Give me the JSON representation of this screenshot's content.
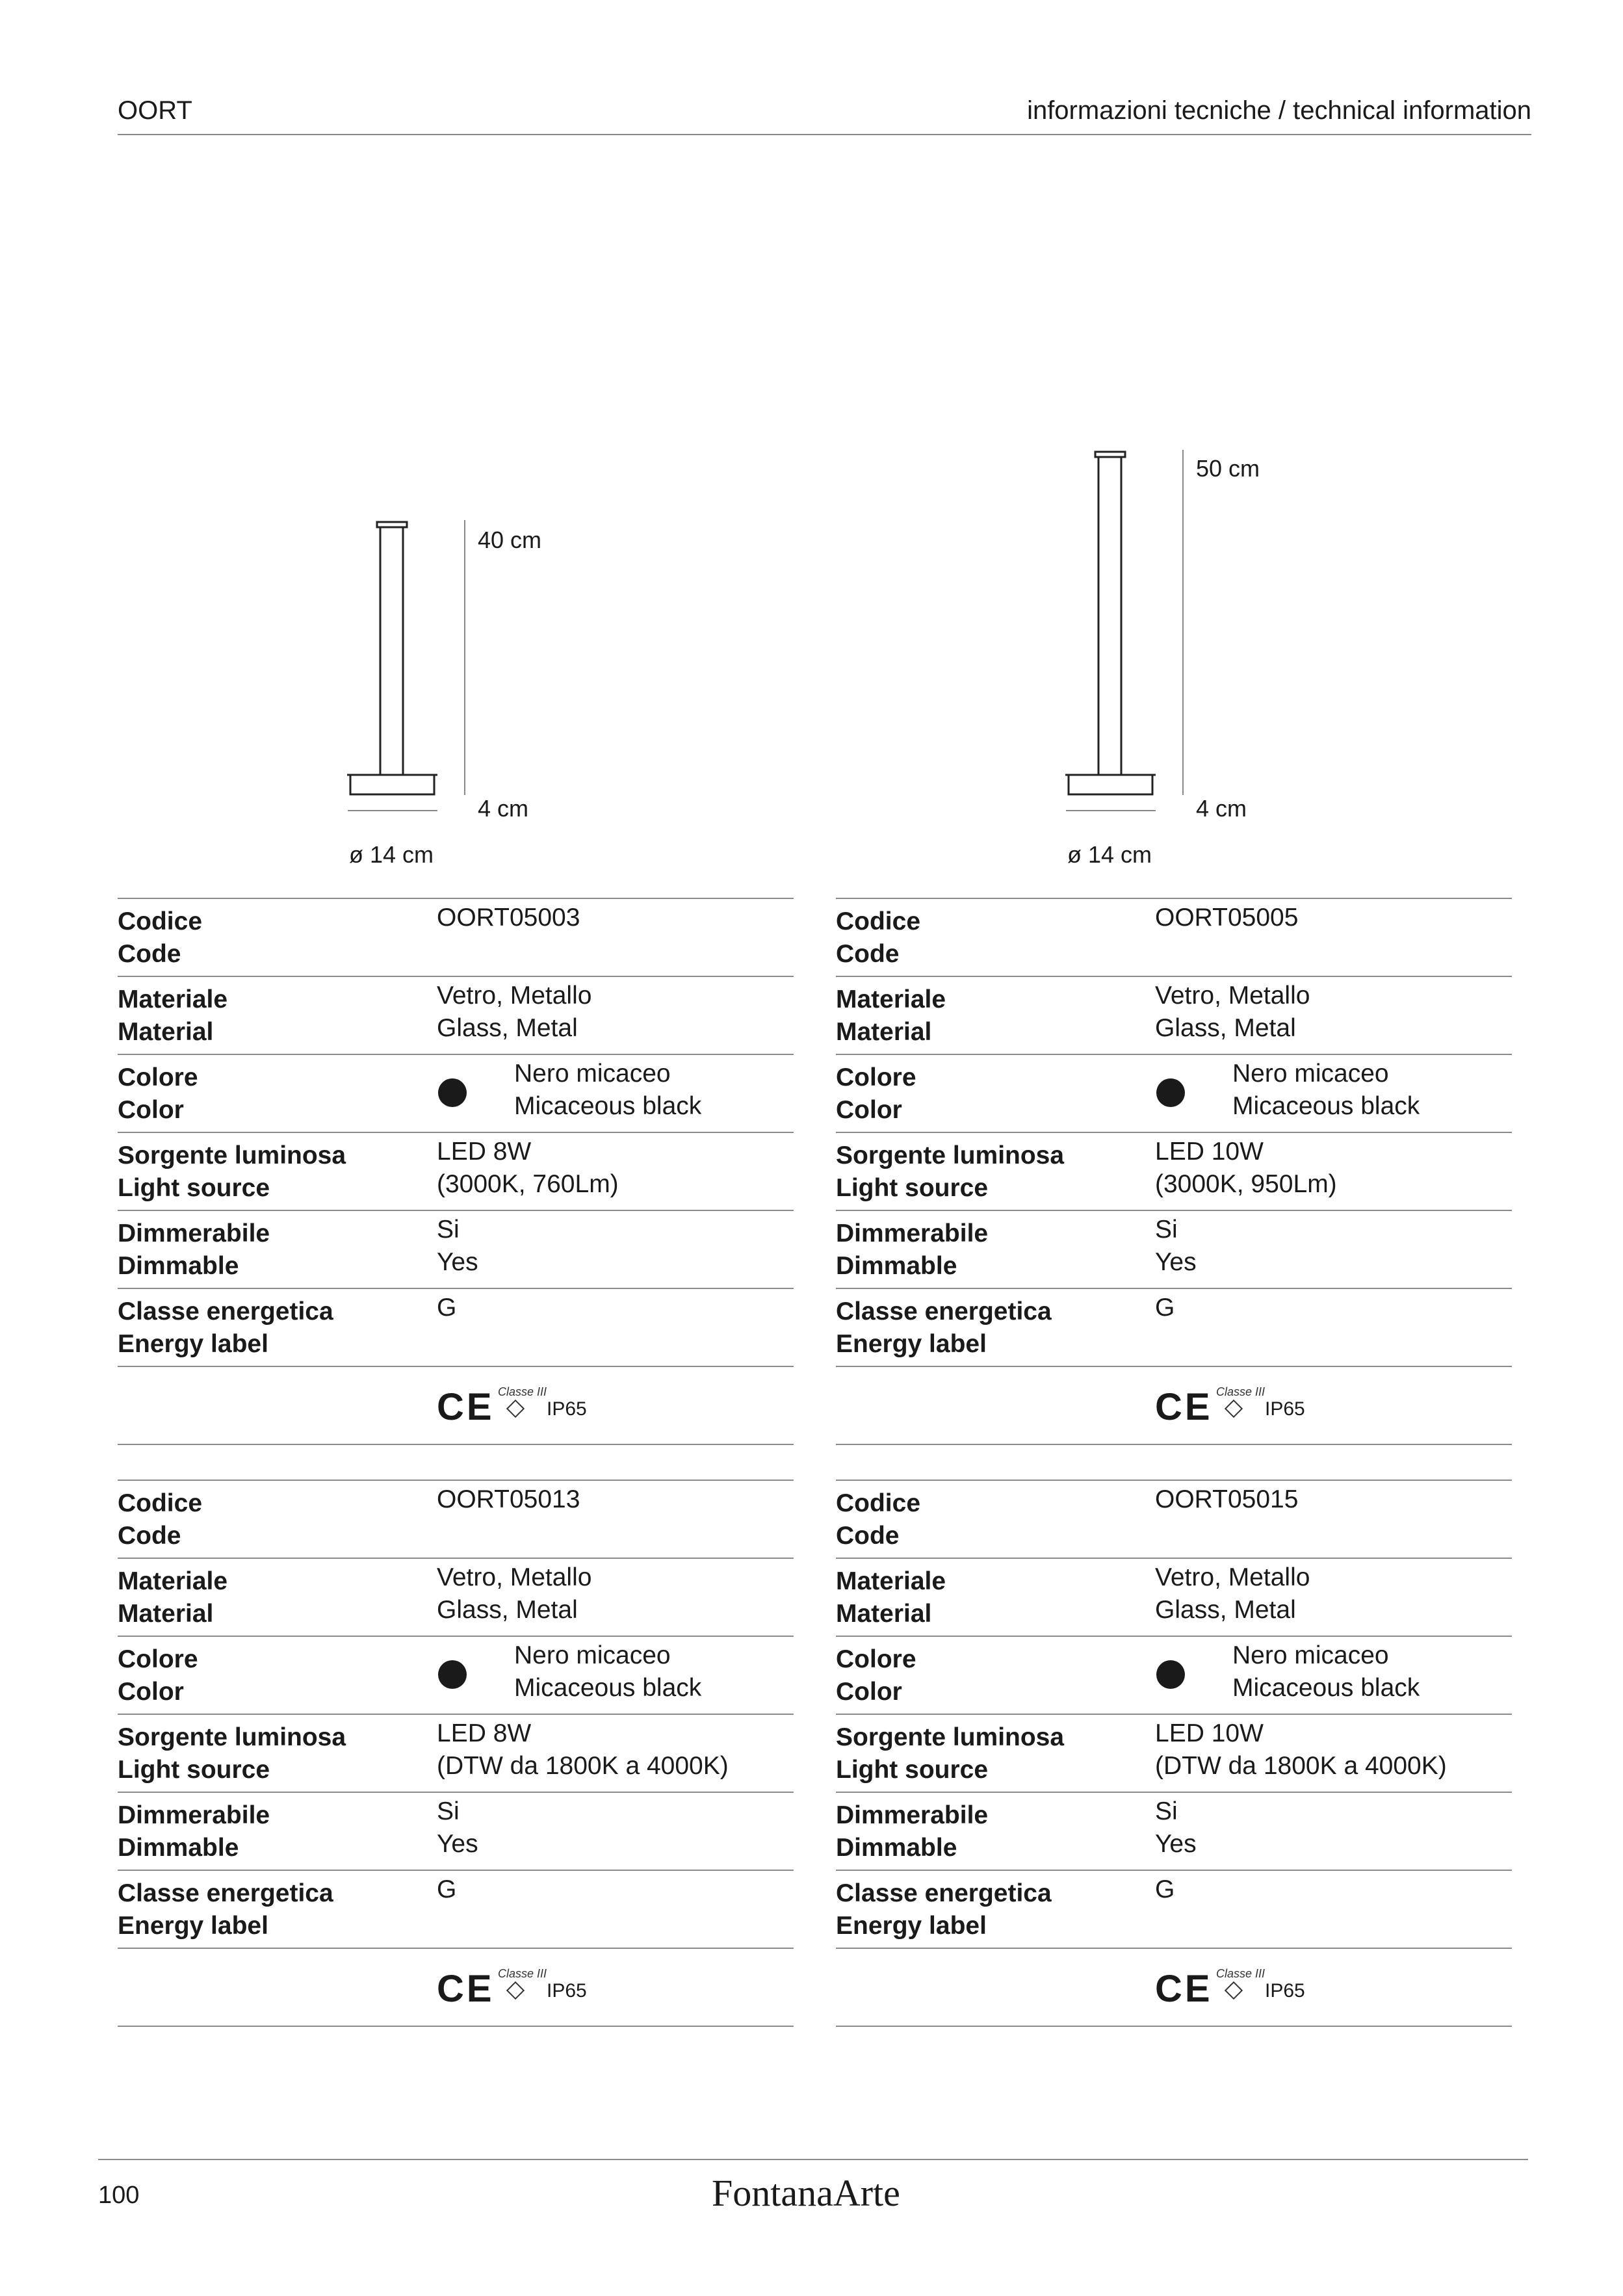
{
  "header": {
    "title": "OORT",
    "section": "informazioni tecniche / technical information"
  },
  "drawings": [
    {
      "height": "40 cm",
      "base": "4 cm",
      "diameter": "ø 14 cm"
    },
    {
      "height": "50 cm",
      "base": "4 cm",
      "diameter": "ø 14 cm"
    }
  ],
  "tables": [
    {
      "rows": [
        {
          "label": [
            "Codice",
            "Code"
          ],
          "value": [
            "OORT05003"
          ]
        },
        {
          "label": [
            "Materiale",
            "Material"
          ],
          "value": [
            "Vetro, Metallo",
            "Glass, Metal"
          ]
        },
        {
          "label": [
            "Colore",
            "Color"
          ],
          "value": [
            "Nero micaceo",
            "Micaceous black"
          ],
          "swatch": "#1a1a1a"
        },
        {
          "label": [
            "Sorgente luminosa",
            "Light source"
          ],
          "value": [
            "LED 8W",
            "(3000K, 760Lm)"
          ]
        },
        {
          "label": [
            "Dimmerabile",
            "Dimmable"
          ],
          "value": [
            "Si",
            "Yes"
          ]
        },
        {
          "label": [
            "Classe energetica",
            "Energy label"
          ],
          "value": [
            "G"
          ]
        }
      ],
      "cert": {
        "ce": "CE",
        "classe": "Classe III",
        "symbol": "III",
        "ip": "IP65"
      }
    },
    {
      "rows": [
        {
          "label": [
            "Codice",
            "Code"
          ],
          "value": [
            "OORT05005"
          ]
        },
        {
          "label": [
            "Materiale",
            "Material"
          ],
          "value": [
            "Vetro, Metallo",
            "Glass, Metal"
          ]
        },
        {
          "label": [
            "Colore",
            "Color"
          ],
          "value": [
            "Nero micaceo",
            "Micaceous black"
          ],
          "swatch": "#1a1a1a"
        },
        {
          "label": [
            "Sorgente luminosa",
            "Light source"
          ],
          "value": [
            "LED 10W",
            "(3000K, 950Lm)"
          ]
        },
        {
          "label": [
            "Dimmerabile",
            "Dimmable"
          ],
          "value": [
            "Si",
            "Yes"
          ]
        },
        {
          "label": [
            "Classe energetica",
            "Energy label"
          ],
          "value": [
            "G"
          ]
        }
      ],
      "cert": {
        "ce": "CE",
        "classe": "Classe III",
        "symbol": "III",
        "ip": "IP65"
      }
    },
    {
      "rows": [
        {
          "label": [
            "Codice",
            "Code"
          ],
          "value": [
            "OORT05013"
          ]
        },
        {
          "label": [
            "Materiale",
            "Material"
          ],
          "value": [
            "Vetro, Metallo",
            "Glass, Metal"
          ]
        },
        {
          "label": [
            "Colore",
            "Color"
          ],
          "value": [
            "Nero micaceo",
            "Micaceous black"
          ],
          "swatch": "#1a1a1a"
        },
        {
          "label": [
            "Sorgente luminosa",
            "Light source"
          ],
          "value": [
            "LED 8W",
            "(DTW da 1800K a 4000K)"
          ]
        },
        {
          "label": [
            "Dimmerabile",
            "Dimmable"
          ],
          "value": [
            "Si",
            "Yes"
          ]
        },
        {
          "label": [
            "Classe energetica",
            "Energy label"
          ],
          "value": [
            "G"
          ]
        }
      ],
      "cert": {
        "ce": "CE",
        "classe": "Classe III",
        "symbol": "III",
        "ip": "IP65"
      }
    },
    {
      "rows": [
        {
          "label": [
            "Codice",
            "Code"
          ],
          "value": [
            "OORT05015"
          ]
        },
        {
          "label": [
            "Materiale",
            "Material"
          ],
          "value": [
            "Vetro, Metallo",
            "Glass, Metal"
          ]
        },
        {
          "label": [
            "Colore",
            "Color"
          ],
          "value": [
            "Nero micaceo",
            "Micaceous black"
          ],
          "swatch": "#1a1a1a"
        },
        {
          "label": [
            "Sorgente luminosa",
            "Light source"
          ],
          "value": [
            "LED 10W",
            "(DTW da 1800K a 4000K)"
          ]
        },
        {
          "label": [
            "Dimmerabile",
            "Dimmable"
          ],
          "value": [
            "Si",
            "Yes"
          ]
        },
        {
          "label": [
            "Classe energetica",
            "Energy label"
          ],
          "value": [
            "G"
          ]
        }
      ],
      "cert": {
        "ce": "CE",
        "classe": "Classe III",
        "symbol": "III",
        "ip": "IP65"
      }
    }
  ],
  "footer": {
    "page": "100",
    "brand": "FontanaArte"
  }
}
